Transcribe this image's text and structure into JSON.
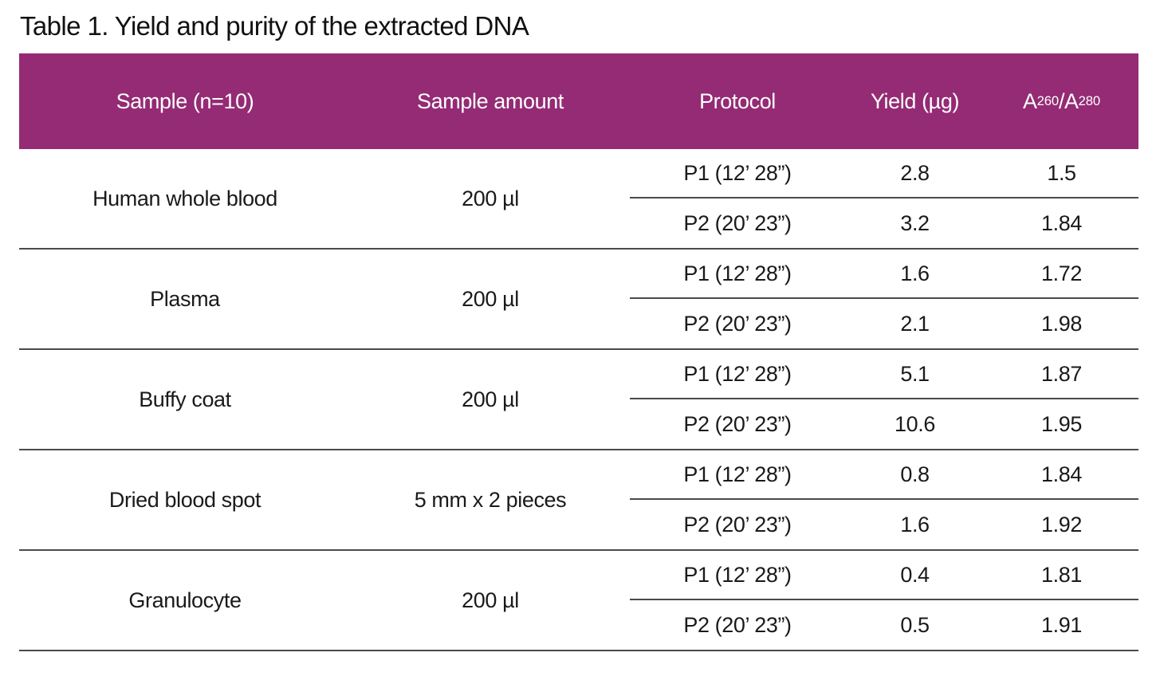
{
  "page": {
    "title": "Table 1. Yield and purity of the extracted DNA"
  },
  "colors": {
    "header_bg": "#942B74",
    "header_text": "#FFFFFF",
    "body_text": "#1A1A1A",
    "rule_line": "#4A4A4A",
    "page_bg": "#FFFFFF"
  },
  "table": {
    "columns": {
      "sample": "Sample (n=10)",
      "amount": "Sample amount",
      "protocol": "Protocol",
      "yield": "Yield (µg)",
      "ratio": {
        "base1": "A",
        "sub1": "260",
        "divider": "/",
        "base2": "A",
        "sub2": "280"
      }
    },
    "groups": [
      {
        "sample": "Human whole blood",
        "amount": "200 µl",
        "rows": [
          {
            "protocol": "P1 (12’ 28”)",
            "yield": "2.8",
            "ratio": "1.5"
          },
          {
            "protocol": "P2 (20’ 23”)",
            "yield": "3.2",
            "ratio": "1.84"
          }
        ]
      },
      {
        "sample": "Plasma",
        "amount": "200 µl",
        "rows": [
          {
            "protocol": "P1 (12’ 28”)",
            "yield": "1.6",
            "ratio": "1.72"
          },
          {
            "protocol": "P2 (20’ 23”)",
            "yield": "2.1",
            "ratio": "1.98"
          }
        ]
      },
      {
        "sample": "Buffy coat",
        "amount": "200 µl",
        "rows": [
          {
            "protocol": "P1 (12’ 28”)",
            "yield": "5.1",
            "ratio": "1.87"
          },
          {
            "protocol": "P2 (20’ 23”)",
            "yield": "10.6",
            "ratio": "1.95"
          }
        ]
      },
      {
        "sample": "Dried blood spot",
        "amount": "5 mm x 2 pieces",
        "rows": [
          {
            "protocol": "P1 (12’ 28”)",
            "yield": "0.8",
            "ratio": "1.84"
          },
          {
            "protocol": "P2 (20’ 23”)",
            "yield": "1.6",
            "ratio": "1.92"
          }
        ]
      },
      {
        "sample": "Granulocyte",
        "amount": "200 µl",
        "rows": [
          {
            "protocol": "P1 (12’ 28”)",
            "yield": "0.4",
            "ratio": "1.81"
          },
          {
            "protocol": "P2 (20’ 23”)",
            "yield": "0.5",
            "ratio": "1.91"
          }
        ]
      }
    ]
  }
}
